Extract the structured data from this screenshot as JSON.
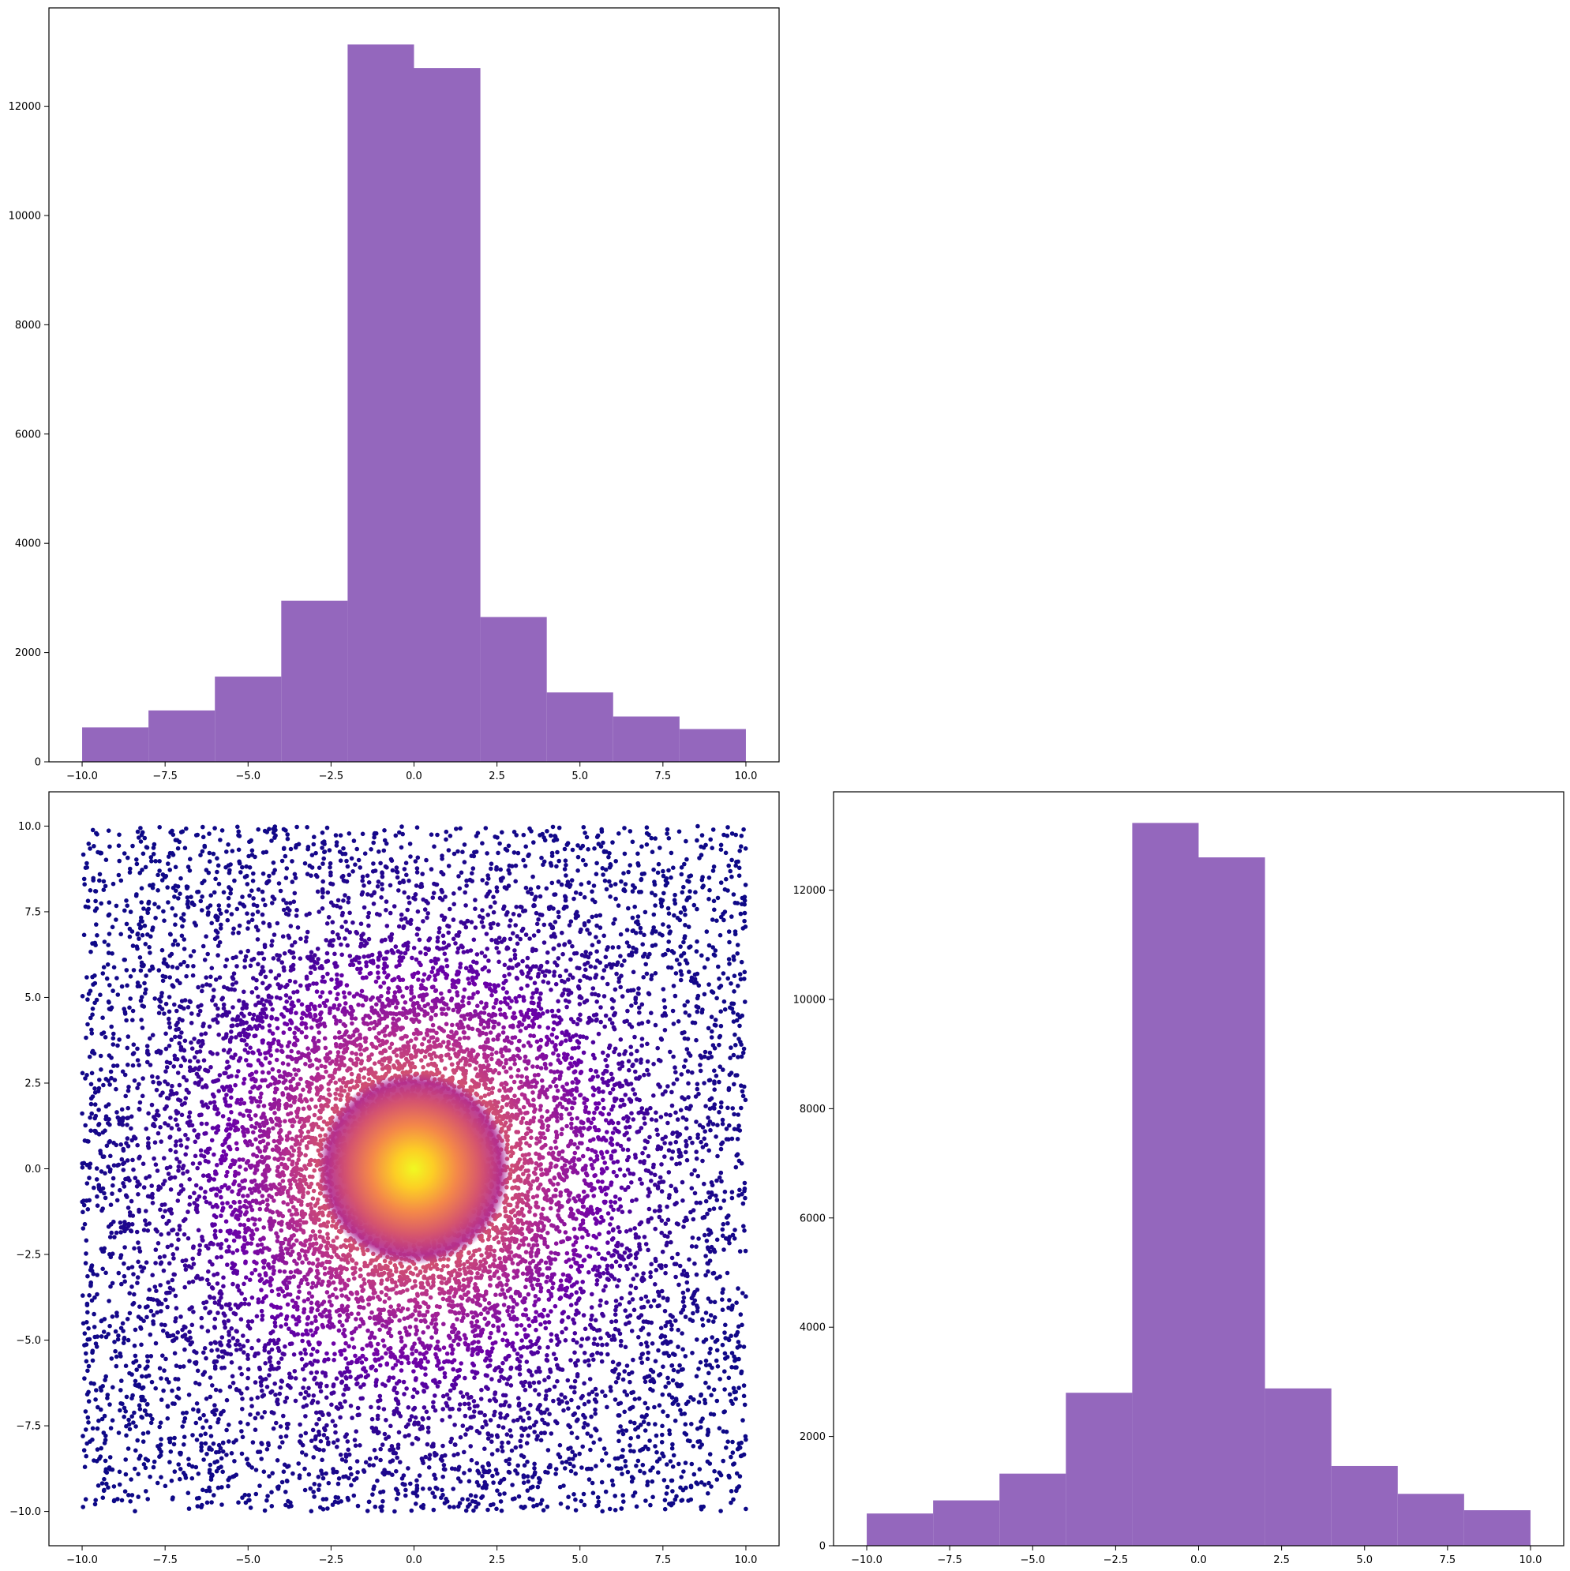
{
  "chart_data": [
    {
      "type": "bar",
      "position": "top-left",
      "title": "",
      "xlabel": "",
      "ylabel": "",
      "bin_edges": [
        -10,
        -8,
        -6,
        -4,
        -2,
        0,
        2,
        4,
        6,
        8,
        10
      ],
      "values": [
        630,
        940,
        1560,
        2950,
        13130,
        12700,
        2650,
        1270,
        830,
        600
      ],
      "color": "#9467bd",
      "xlim": [
        -11,
        11
      ],
      "ylim": [
        0,
        13800
      ],
      "xticks": [
        -10,
        -7.5,
        -5,
        -2.5,
        0,
        2.5,
        5,
        7.5,
        10
      ],
      "xtick_labels": [
        "−10.0",
        "−7.5",
        "−5.0",
        "−2.5",
        "0.0",
        "2.5",
        "5.0",
        "7.5",
        "10.0"
      ],
      "yticks": [
        0,
        2000,
        4000,
        6000,
        8000,
        10000,
        12000
      ],
      "ytick_labels": [
        "0",
        "2000",
        "4000",
        "6000",
        "8000",
        "10000",
        "12000"
      ]
    },
    {
      "type": "scatter",
      "position": "bottom-left",
      "title": "",
      "xlabel": "",
      "ylabel": "",
      "description": "Points uniformly spread over [-10,10]x[-10,10], denser toward the origin; color mapped by density (plasma colormap: dark blue at edges, purple/magenta mid, orange/yellow at the center).",
      "colormap": [
        "#0d0887",
        "#6a00a8",
        "#b12a90",
        "#e16462",
        "#fca636",
        "#f0f921"
      ],
      "point_count": 40000,
      "xlim": [
        -11,
        11
      ],
      "ylim": [
        -11,
        11
      ],
      "xticks": [
        -10,
        -7.5,
        -5,
        -2.5,
        0,
        2.5,
        5,
        7.5,
        10
      ],
      "xtick_labels": [
        "−10.0",
        "−7.5",
        "−5.0",
        "−2.5",
        "0.0",
        "2.5",
        "5.0",
        "7.5",
        "10.0"
      ],
      "yticks": [
        -10,
        -7.5,
        -5,
        -2.5,
        0,
        2.5,
        5,
        7.5,
        10
      ],
      "ytick_labels": [
        "−10.0",
        "−7.5",
        "−5.0",
        "−2.5",
        "0.0",
        "2.5",
        "5.0",
        "7.5",
        "10.0"
      ]
    },
    {
      "type": "bar",
      "position": "bottom-right",
      "title": "",
      "xlabel": "",
      "ylabel": "",
      "bin_edges": [
        -10,
        -8,
        -6,
        -4,
        -2,
        0,
        2,
        4,
        6,
        8,
        10
      ],
      "values": [
        590,
        830,
        1320,
        2800,
        13230,
        12600,
        2880,
        1460,
        950,
        650
      ],
      "color": "#9467bd",
      "xlim": [
        -11,
        11
      ],
      "ylim": [
        0,
        13800
      ],
      "xticks": [
        -10,
        -7.5,
        -5,
        -2.5,
        0,
        2.5,
        5,
        7.5,
        10
      ],
      "xtick_labels": [
        "−10.0",
        "−7.5",
        "−5.0",
        "−2.5",
        "0.0",
        "2.5",
        "5.0",
        "7.5",
        "10.0"
      ],
      "yticks": [
        0,
        2000,
        4000,
        6000,
        8000,
        10000,
        12000
      ],
      "ytick_labels": [
        "0",
        "2000",
        "4000",
        "6000",
        "8000",
        "10000",
        "12000"
      ]
    }
  ]
}
